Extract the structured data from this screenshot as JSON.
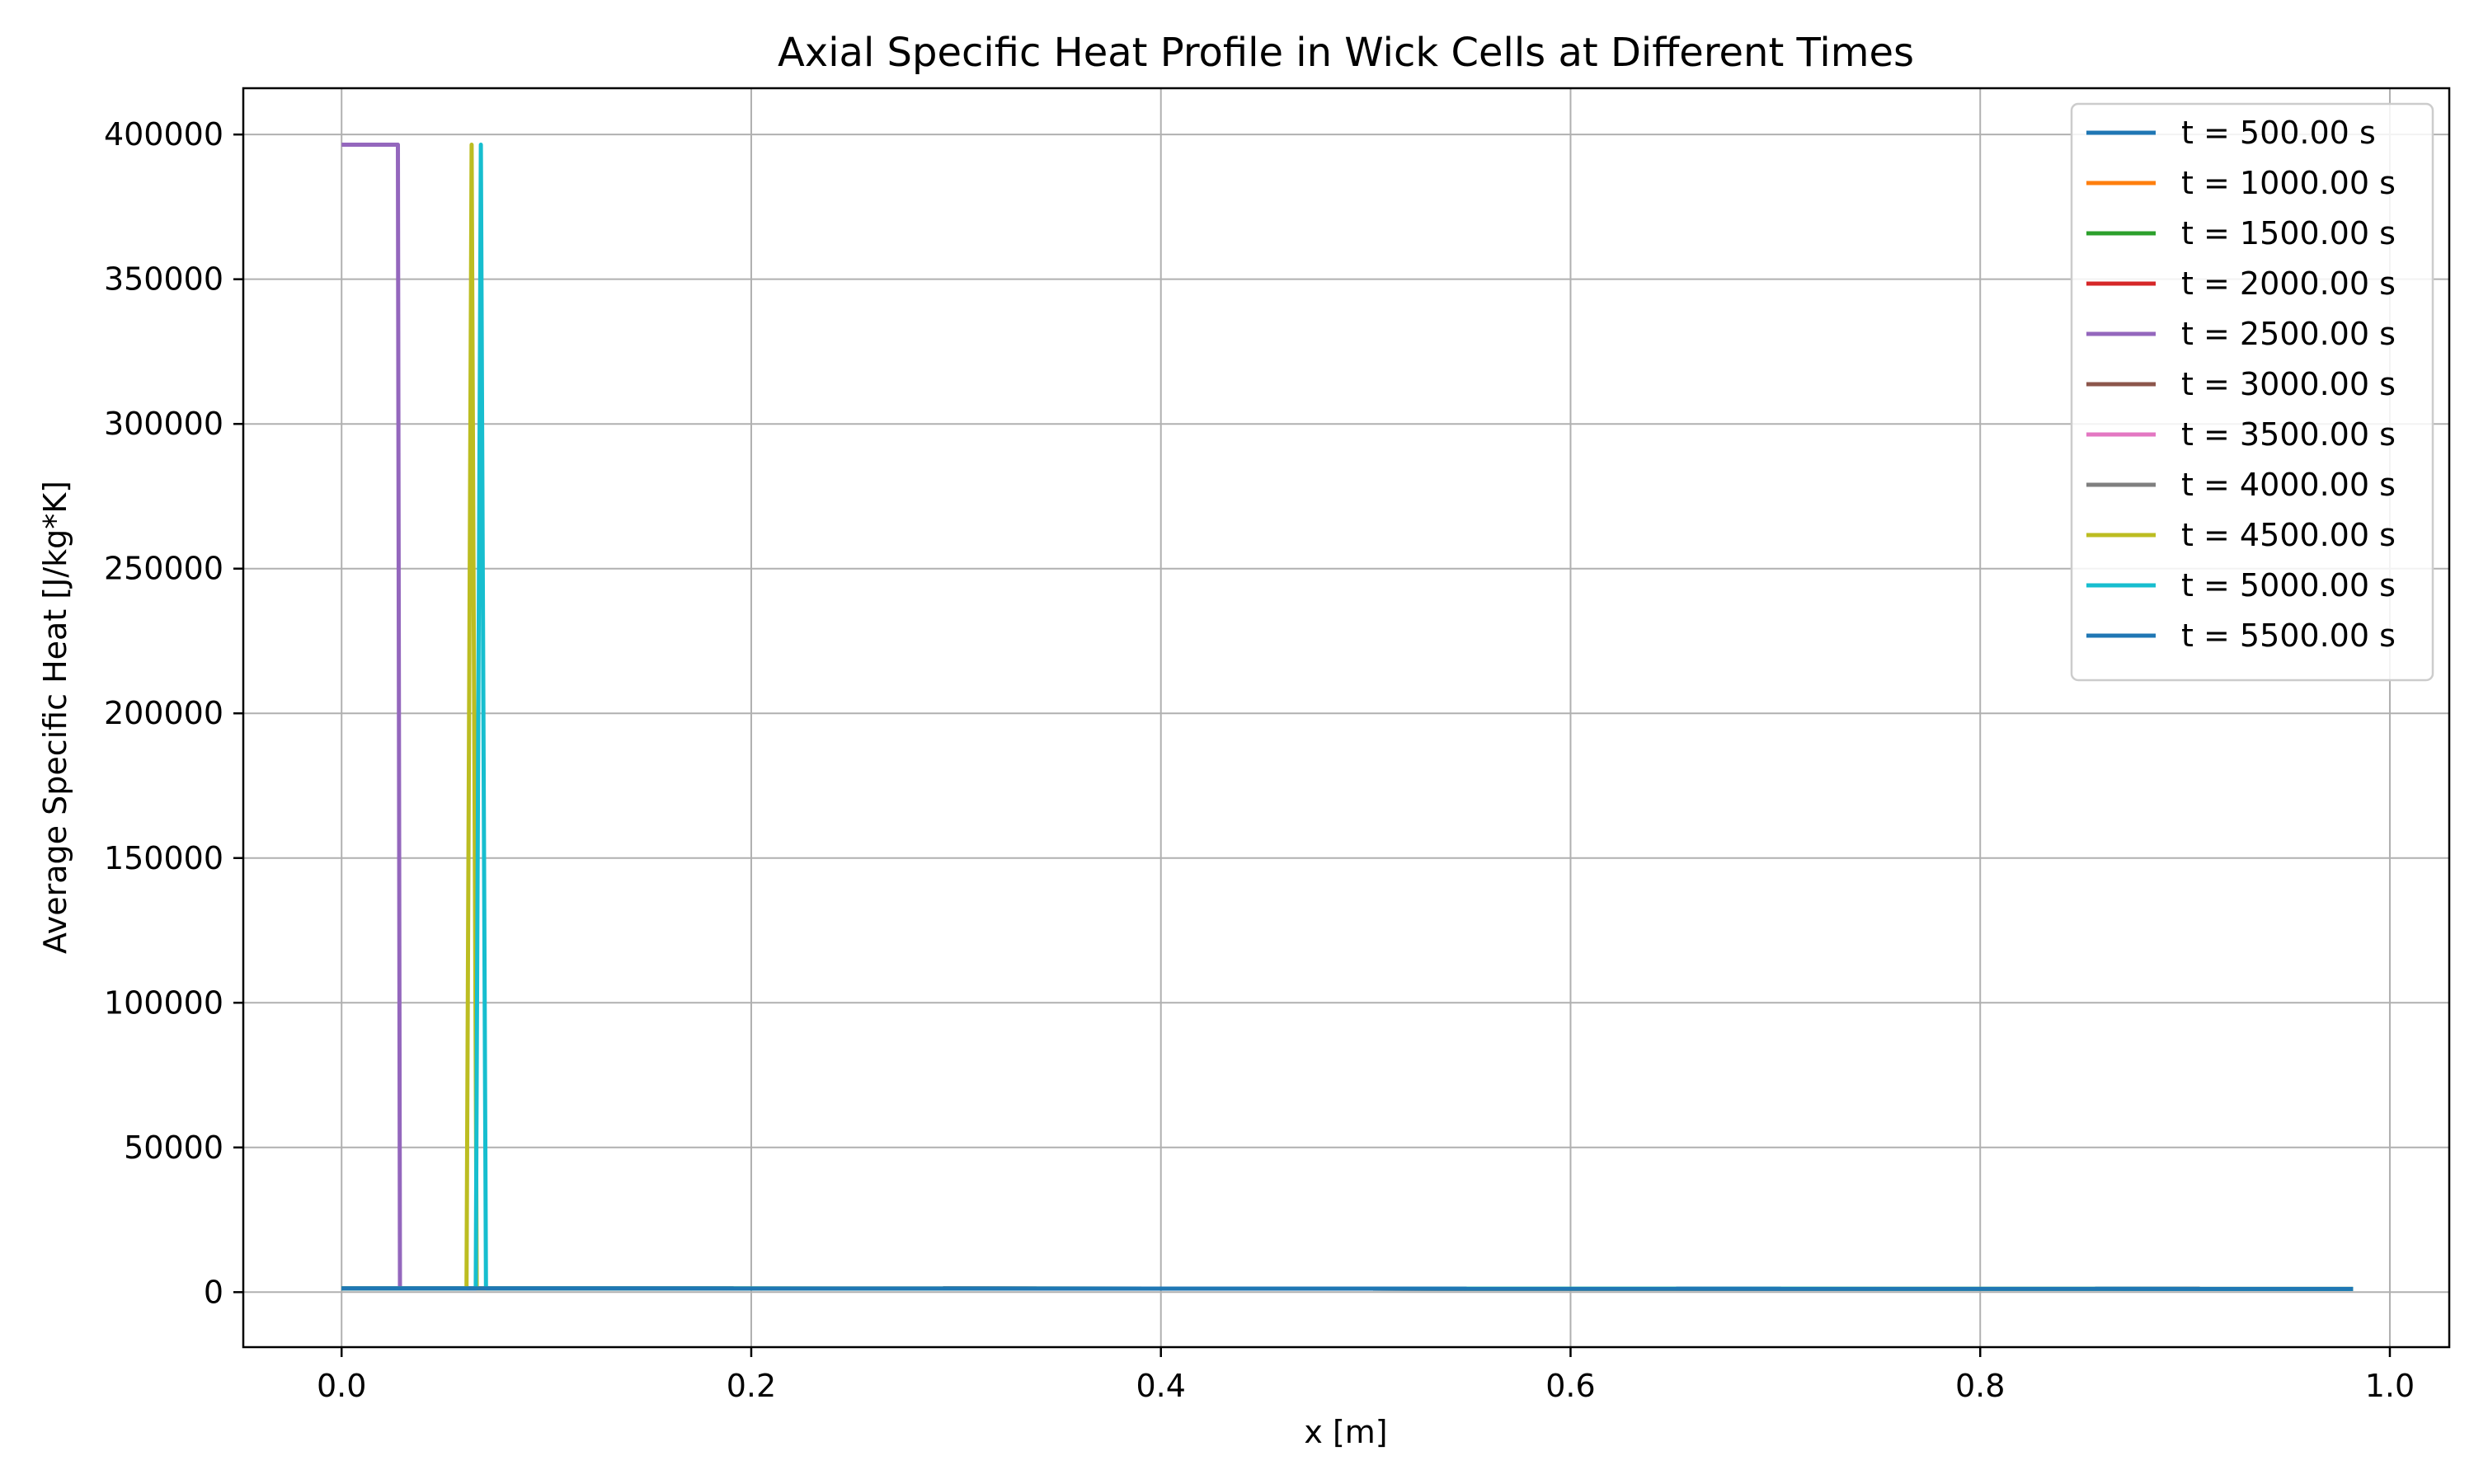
{
  "chart_data": {
    "type": "line",
    "title": "Axial Specific Heat Profile in Wick Cells at Different Times",
    "xlabel": "x [m]",
    "ylabel": "Average Specific Heat [J/kg*K]",
    "xlim": [
      -0.048,
      1.029
    ],
    "ylim": [
      -19000,
      416000
    ],
    "xticks": [
      0.0,
      0.2,
      0.4,
      0.6,
      0.8,
      1.0
    ],
    "xtick_labels": [
      "0.0",
      "0.2",
      "0.4",
      "0.6",
      "0.8",
      "1.0"
    ],
    "yticks": [
      0,
      50000,
      100000,
      150000,
      200000,
      250000,
      300000,
      350000,
      400000
    ],
    "ytick_labels": [
      "0",
      "50000",
      "100000",
      "150000",
      "200000",
      "250000",
      "300000",
      "350000",
      "400000"
    ],
    "grid": true,
    "legend_position": "top-right",
    "series": [
      {
        "name": "t = 500.00 s",
        "color": "#1f77b4",
        "x": [
          0.0,
          0.982
        ],
        "y": [
          1300,
          1100
        ]
      },
      {
        "name": "t = 1000.00 s",
        "color": "#ff7f0e",
        "x": [
          0.0,
          0.982
        ],
        "y": [
          1300,
          1100
        ]
      },
      {
        "name": "t = 1500.00 s",
        "color": "#2ca02c",
        "x": [
          0.0,
          0.982
        ],
        "y": [
          1300,
          1100
        ]
      },
      {
        "name": "t = 2000.00 s",
        "color": "#d62728",
        "x": [
          0.0,
          0.982
        ],
        "y": [
          1300,
          1100
        ]
      },
      {
        "name": "t = 2500.00 s",
        "color": "#9467bd",
        "x": [
          0.0,
          0.0275,
          0.0285,
          0.982
        ],
        "y": [
          396500,
          396500,
          1300,
          1100
        ]
      },
      {
        "name": "t = 3000.00 s",
        "color": "#8c564b",
        "x": [
          0.0,
          0.982
        ],
        "y": [
          1300,
          1100
        ]
      },
      {
        "name": "t = 3500.00 s",
        "color": "#e377c2",
        "x": [
          0.0,
          0.982
        ],
        "y": [
          1300,
          1100
        ]
      },
      {
        "name": "t = 4000.00 s",
        "color": "#7f7f7f",
        "x": [
          0.0,
          0.982
        ],
        "y": [
          1300,
          1100
        ]
      },
      {
        "name": "t = 4500.00 s",
        "color": "#bcbd22",
        "x": [
          0.0,
          0.061,
          0.0635,
          0.066,
          0.982
        ],
        "y": [
          1300,
          1300,
          396500,
          1300,
          1100
        ]
      },
      {
        "name": "t = 5000.00 s",
        "color": "#17becf",
        "x": [
          0.0,
          0.0655,
          0.068,
          0.0705,
          0.982
        ],
        "y": [
          1300,
          1300,
          396500,
          1300,
          1100
        ]
      },
      {
        "name": "t = 5500.00 s",
        "color": "#1f77b4",
        "x": [
          0.0,
          0.982
        ],
        "y": [
          1300,
          1100
        ]
      }
    ]
  }
}
